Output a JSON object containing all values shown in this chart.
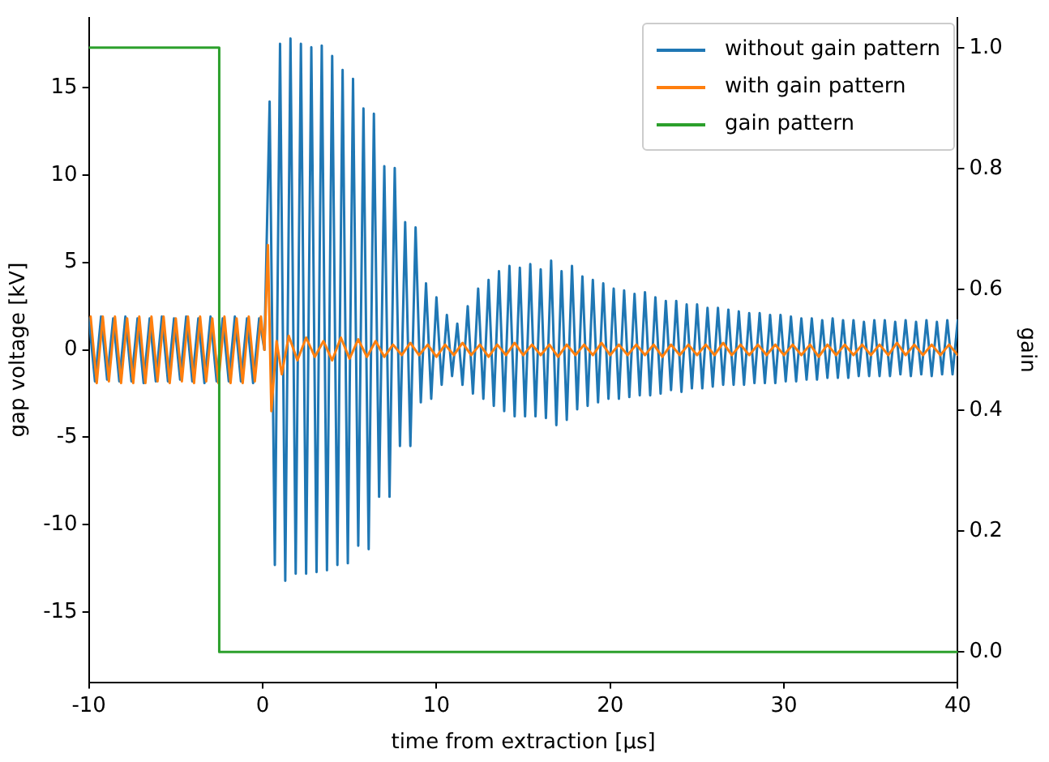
{
  "chart_data": {
    "type": "line",
    "xlabel": "time from extraction [μs]",
    "ylabel": "gap voltage [kV]",
    "y2label": "gain",
    "xlim": [
      -10,
      40
    ],
    "xticks": [
      -10,
      0,
      10,
      20,
      30,
      40
    ],
    "ylim": [
      -19,
      19
    ],
    "yticks": [
      -15,
      -10,
      -5,
      0,
      5,
      10,
      15
    ],
    "y2lim": [
      -0.05,
      1.05
    ],
    "y2ticks": [
      {
        "value": 0,
        "label": "0.0"
      },
      {
        "value": 0.2,
        "label": "0.2"
      },
      {
        "value": 0.4,
        "label": "0.4"
      },
      {
        "value": 0.6,
        "label": "0.6"
      },
      {
        "value": 0.8,
        "label": "0.8"
      },
      {
        "value": 1,
        "label": "1.0"
      }
    ],
    "grid": false,
    "legend": "top right",
    "marker": "none",
    "line_style": "solid",
    "series": [
      {
        "name": "without gain pattern",
        "color": "#1f77b4",
        "x": [
          -10,
          -9.65,
          -9.3,
          -8.95,
          -8.6,
          -8.25,
          -7.9,
          -7.55,
          -7.2,
          -6.85,
          -6.5,
          -6.15,
          -5.8,
          -5.45,
          -5.1,
          -4.75,
          -4.4,
          -4.05,
          -3.7,
          -3.35,
          -3,
          -2.65,
          -2.3,
          -1.95,
          -1.6,
          -1.25,
          -0.9,
          -0.55,
          -0.2,
          0.1,
          0.4,
          0.7,
          1.0,
          1.3,
          1.6,
          1.9,
          2.2,
          2.5,
          2.8,
          3.1,
          3.4,
          3.7,
          4.0,
          4.3,
          4.6,
          4.9,
          5.2,
          5.5,
          5.8,
          6.1,
          6.4,
          6.7,
          7.0,
          7.3,
          7.6,
          7.9,
          8.2,
          8.5,
          8.8,
          9.1,
          9.4,
          9.7,
          10.0,
          10.3,
          10.6,
          10.9,
          11.2,
          11.5,
          11.8,
          12.1,
          12.4,
          12.7,
          13.0,
          13.3,
          13.6,
          13.9,
          14.2,
          14.5,
          14.8,
          15.1,
          15.4,
          15.7,
          16.0,
          16.3,
          16.6,
          16.9,
          17.2,
          17.5,
          17.8,
          18.1,
          18.4,
          18.7,
          19.0,
          19.3,
          19.6,
          19.9,
          20.2,
          20.5,
          20.8,
          21.1,
          21.4,
          21.7,
          22.0,
          22.3,
          22.6,
          22.9,
          23.2,
          23.5,
          23.8,
          24.1,
          24.4,
          24.7,
          25.0,
          25.3,
          25.6,
          25.9,
          26.2,
          26.5,
          26.8,
          27.1,
          27.4,
          27.7,
          28.0,
          28.3,
          28.6,
          28.9,
          29.2,
          29.5,
          29.8,
          30.1,
          30.4,
          30.7,
          31.0,
          31.3,
          31.6,
          31.9,
          32.2,
          32.5,
          32.8,
          33.1,
          33.4,
          33.7,
          34.0,
          34.3,
          34.6,
          34.9,
          35.2,
          35.5,
          35.8,
          36.1,
          36.4,
          36.7,
          37.0,
          37.3,
          37.6,
          37.9,
          38.2,
          38.5,
          38.8,
          39.1,
          39.4,
          39.7,
          40.0
        ],
        "values": [
          1.8,
          -1.8,
          1.9,
          -1.7,
          1.8,
          -1.8,
          1.9,
          -1.8,
          1.8,
          -1.9,
          1.8,
          -1.8,
          1.9,
          -1.8,
          1.8,
          -1.7,
          1.9,
          -1.8,
          1.8,
          -1.9,
          1.9,
          -1.8,
          1.8,
          -1.8,
          1.9,
          -1.8,
          1.8,
          -1.9,
          1.8,
          0,
          14.2,
          -12.3,
          17.5,
          -13.2,
          17.8,
          -12.8,
          17.5,
          -12.8,
          17.3,
          -12.7,
          17.4,
          -12.6,
          16.8,
          -12.3,
          16.0,
          -12.2,
          15.5,
          -11.2,
          13.8,
          -11.4,
          13.5,
          -8.4,
          10.5,
          -8.4,
          10.4,
          -5.5,
          7.3,
          -5.5,
          7.0,
          -3.0,
          3.8,
          -2.8,
          3.0,
          -2.0,
          2.0,
          -1.5,
          1.5,
          -2.0,
          2.5,
          -2.5,
          3.5,
          -2.8,
          4.0,
          -3.2,
          4.5,
          -3.5,
          4.8,
          -3.8,
          4.7,
          -3.8,
          4.9,
          -3.8,
          4.6,
          -3.9,
          5.1,
          -4.3,
          4.5,
          -4.0,
          4.8,
          -3.4,
          4.2,
          -3.2,
          4.0,
          -3.0,
          3.8,
          -2.8,
          3.5,
          -2.8,
          3.4,
          -2.7,
          3.2,
          -2.6,
          3.3,
          -2.6,
          3.0,
          -2.5,
          2.8,
          -2.3,
          2.8,
          -2.4,
          2.6,
          -2.2,
          2.6,
          -2.2,
          2.4,
          -2.1,
          2.4,
          -2.0,
          2.3,
          -2.0,
          2.2,
          -2.0,
          2.1,
          -1.9,
          2.1,
          -1.9,
          2.0,
          -1.9,
          2.0,
          -1.8,
          1.9,
          -1.8,
          1.8,
          -1.7,
          1.8,
          -1.7,
          1.7,
          -1.6,
          1.8,
          -1.6,
          1.7,
          -1.6,
          1.7,
          -1.5,
          1.6,
          -1.5,
          1.7,
          -1.5,
          1.7,
          -1.5,
          1.6,
          -1.4,
          1.7,
          -1.5,
          1.6,
          -1.4,
          1.7,
          -1.5,
          1.6,
          -1.4,
          1.7,
          -1.4,
          1.7
        ]
      },
      {
        "name": "with gain pattern",
        "color": "#ff7f0e",
        "x": [
          -9.9,
          -9.55,
          -9.2,
          -8.85,
          -8.5,
          -8.15,
          -7.8,
          -7.45,
          -7.1,
          -6.75,
          -6.4,
          -6.05,
          -5.7,
          -5.35,
          -5,
          -4.65,
          -4.3,
          -3.95,
          -3.6,
          -3.25,
          -2.9,
          -2.55,
          -2.2,
          -1.85,
          -1.5,
          -1.15,
          -0.8,
          -0.45,
          -0.1,
          0.1,
          0.3,
          0.5,
          0.8,
          1.1,
          1.5,
          2.0,
          2.5,
          3.0,
          3.5,
          4.0,
          4.5,
          5.0,
          5.5,
          6.0,
          6.5,
          7.0,
          7.5,
          8.0,
          8.5,
          9.0,
          9.5,
          10.0,
          10.5,
          11.0,
          11.5,
          12.0,
          12.5,
          13.0,
          13.5,
          14.0,
          14.5,
          15.0,
          15.5,
          16.0,
          16.5,
          17.0,
          17.5,
          18.0,
          18.5,
          19.0,
          19.5,
          20.0,
          20.5,
          21.0,
          21.5,
          22.0,
          22.5,
          23.0,
          23.5,
          24.0,
          24.5,
          25.0,
          25.5,
          26.0,
          26.5,
          27.0,
          27.5,
          28.0,
          28.5,
          29.0,
          29.5,
          30.0,
          30.5,
          31.0,
          31.5,
          32.0,
          32.5,
          33.0,
          33.5,
          34.0,
          34.5,
          35.0,
          35.5,
          36.0,
          36.5,
          37.0,
          37.5,
          38.0,
          38.5,
          39.0,
          39.5,
          40.0
        ],
        "values": [
          1.9,
          -1.9,
          1.9,
          -1.8,
          1.9,
          -1.9,
          1.8,
          -1.9,
          1.9,
          -1.9,
          1.9,
          -1.8,
          1.9,
          -1.9,
          1.8,
          -1.8,
          1.9,
          -1.9,
          1.9,
          -1.8,
          1.8,
          -1.9,
          1.9,
          -1.9,
          1.8,
          -1.9,
          1.9,
          -1.8,
          1.9,
          0,
          6.0,
          -3.5,
          0.5,
          -1.4,
          0.8,
          -0.6,
          0.7,
          -0.4,
          0.5,
          -0.6,
          0.7,
          -0.5,
          0.6,
          -0.4,
          0.5,
          -0.4,
          0.3,
          -0.3,
          0.4,
          -0.3,
          0.3,
          -0.4,
          0.3,
          -0.3,
          0.4,
          -0.3,
          0.3,
          -0.4,
          0.3,
          -0.3,
          0.4,
          -0.3,
          0.3,
          -0.3,
          0.3,
          -0.4,
          0.3,
          -0.3,
          0.3,
          -0.3,
          0.4,
          -0.3,
          0.3,
          -0.3,
          0.3,
          -0.3,
          0.3,
          -0.4,
          0.3,
          -0.3,
          0.3,
          -0.3,
          0.3,
          -0.3,
          0.4,
          -0.3,
          0.3,
          -0.3,
          0.3,
          -0.3,
          0.3,
          -0.3,
          0.3,
          -0.3,
          0.3,
          -0.4,
          0.3,
          -0.3,
          0.3,
          -0.3,
          0.3,
          -0.3,
          0.3,
          -0.3,
          0.4,
          -0.3,
          0.3,
          -0.3,
          0.3,
          -0.3,
          0.3,
          -0.3
        ]
      },
      {
        "name": "gain pattern",
        "color": "#2ca02c",
        "type": "step",
        "axis": "y2",
        "x": [
          -10,
          -2.5,
          40
        ],
        "values": [
          1,
          0,
          0
        ]
      }
    ]
  }
}
